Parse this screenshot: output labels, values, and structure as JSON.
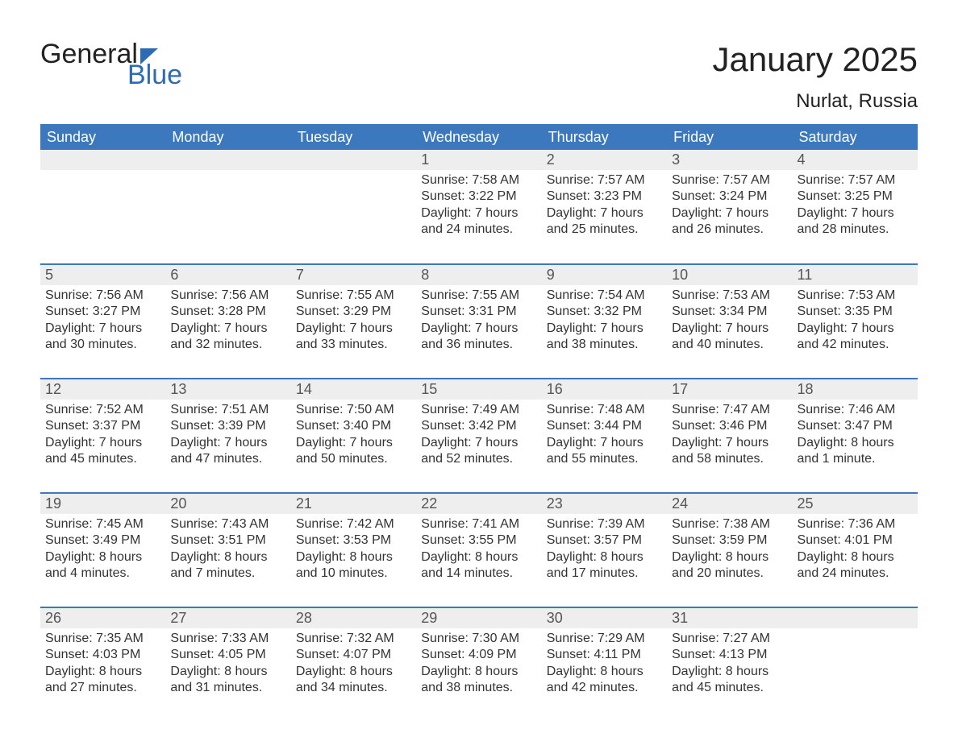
{
  "logo": {
    "word1": "General",
    "word2": "Blue"
  },
  "title": "January 2025",
  "location": "Nurlat, Russia",
  "colors": {
    "header_bg": "#3b78bd",
    "header_text": "#ffffff",
    "row_separator": "#3b78bd",
    "daynum_bg": "#eeeeee",
    "daynum_text": "#555555",
    "body_text": "#333333",
    "page_bg": "#ffffff",
    "logo_accent": "#2d6cb4"
  },
  "fonts": {
    "title_size_pt": 32,
    "location_size_pt": 18,
    "dayheader_size_pt": 14,
    "daynum_size_pt": 14,
    "body_size_pt": 12
  },
  "day_headers": [
    "Sunday",
    "Monday",
    "Tuesday",
    "Wednesday",
    "Thursday",
    "Friday",
    "Saturday"
  ],
  "weeks": [
    [
      {
        "n": "",
        "sr": "",
        "ss": "",
        "dl": ""
      },
      {
        "n": "",
        "sr": "",
        "ss": "",
        "dl": ""
      },
      {
        "n": "",
        "sr": "",
        "ss": "",
        "dl": ""
      },
      {
        "n": "1",
        "sr": "Sunrise: 7:58 AM",
        "ss": "Sunset: 3:22 PM",
        "dl": "Daylight: 7 hours and 24 minutes."
      },
      {
        "n": "2",
        "sr": "Sunrise: 7:57 AM",
        "ss": "Sunset: 3:23 PM",
        "dl": "Daylight: 7 hours and 25 minutes."
      },
      {
        "n": "3",
        "sr": "Sunrise: 7:57 AM",
        "ss": "Sunset: 3:24 PM",
        "dl": "Daylight: 7 hours and 26 minutes."
      },
      {
        "n": "4",
        "sr": "Sunrise: 7:57 AM",
        "ss": "Sunset: 3:25 PM",
        "dl": "Daylight: 7 hours and 28 minutes."
      }
    ],
    [
      {
        "n": "5",
        "sr": "Sunrise: 7:56 AM",
        "ss": "Sunset: 3:27 PM",
        "dl": "Daylight: 7 hours and 30 minutes."
      },
      {
        "n": "6",
        "sr": "Sunrise: 7:56 AM",
        "ss": "Sunset: 3:28 PM",
        "dl": "Daylight: 7 hours and 32 minutes."
      },
      {
        "n": "7",
        "sr": "Sunrise: 7:55 AM",
        "ss": "Sunset: 3:29 PM",
        "dl": "Daylight: 7 hours and 33 minutes."
      },
      {
        "n": "8",
        "sr": "Sunrise: 7:55 AM",
        "ss": "Sunset: 3:31 PM",
        "dl": "Daylight: 7 hours and 36 minutes."
      },
      {
        "n": "9",
        "sr": "Sunrise: 7:54 AM",
        "ss": "Sunset: 3:32 PM",
        "dl": "Daylight: 7 hours and 38 minutes."
      },
      {
        "n": "10",
        "sr": "Sunrise: 7:53 AM",
        "ss": "Sunset: 3:34 PM",
        "dl": "Daylight: 7 hours and 40 minutes."
      },
      {
        "n": "11",
        "sr": "Sunrise: 7:53 AM",
        "ss": "Sunset: 3:35 PM",
        "dl": "Daylight: 7 hours and 42 minutes."
      }
    ],
    [
      {
        "n": "12",
        "sr": "Sunrise: 7:52 AM",
        "ss": "Sunset: 3:37 PM",
        "dl": "Daylight: 7 hours and 45 minutes."
      },
      {
        "n": "13",
        "sr": "Sunrise: 7:51 AM",
        "ss": "Sunset: 3:39 PM",
        "dl": "Daylight: 7 hours and 47 minutes."
      },
      {
        "n": "14",
        "sr": "Sunrise: 7:50 AM",
        "ss": "Sunset: 3:40 PM",
        "dl": "Daylight: 7 hours and 50 minutes."
      },
      {
        "n": "15",
        "sr": "Sunrise: 7:49 AM",
        "ss": "Sunset: 3:42 PM",
        "dl": "Daylight: 7 hours and 52 minutes."
      },
      {
        "n": "16",
        "sr": "Sunrise: 7:48 AM",
        "ss": "Sunset: 3:44 PM",
        "dl": "Daylight: 7 hours and 55 minutes."
      },
      {
        "n": "17",
        "sr": "Sunrise: 7:47 AM",
        "ss": "Sunset: 3:46 PM",
        "dl": "Daylight: 7 hours and 58 minutes."
      },
      {
        "n": "18",
        "sr": "Sunrise: 7:46 AM",
        "ss": "Sunset: 3:47 PM",
        "dl": "Daylight: 8 hours and 1 minute."
      }
    ],
    [
      {
        "n": "19",
        "sr": "Sunrise: 7:45 AM",
        "ss": "Sunset: 3:49 PM",
        "dl": "Daylight: 8 hours and 4 minutes."
      },
      {
        "n": "20",
        "sr": "Sunrise: 7:43 AM",
        "ss": "Sunset: 3:51 PM",
        "dl": "Daylight: 8 hours and 7 minutes."
      },
      {
        "n": "21",
        "sr": "Sunrise: 7:42 AM",
        "ss": "Sunset: 3:53 PM",
        "dl": "Daylight: 8 hours and 10 minutes."
      },
      {
        "n": "22",
        "sr": "Sunrise: 7:41 AM",
        "ss": "Sunset: 3:55 PM",
        "dl": "Daylight: 8 hours and 14 minutes."
      },
      {
        "n": "23",
        "sr": "Sunrise: 7:39 AM",
        "ss": "Sunset: 3:57 PM",
        "dl": "Daylight: 8 hours and 17 minutes."
      },
      {
        "n": "24",
        "sr": "Sunrise: 7:38 AM",
        "ss": "Sunset: 3:59 PM",
        "dl": "Daylight: 8 hours and 20 minutes."
      },
      {
        "n": "25",
        "sr": "Sunrise: 7:36 AM",
        "ss": "Sunset: 4:01 PM",
        "dl": "Daylight: 8 hours and 24 minutes."
      }
    ],
    [
      {
        "n": "26",
        "sr": "Sunrise: 7:35 AM",
        "ss": "Sunset: 4:03 PM",
        "dl": "Daylight: 8 hours and 27 minutes."
      },
      {
        "n": "27",
        "sr": "Sunrise: 7:33 AM",
        "ss": "Sunset: 4:05 PM",
        "dl": "Daylight: 8 hours and 31 minutes."
      },
      {
        "n": "28",
        "sr": "Sunrise: 7:32 AM",
        "ss": "Sunset: 4:07 PM",
        "dl": "Daylight: 8 hours and 34 minutes."
      },
      {
        "n": "29",
        "sr": "Sunrise: 7:30 AM",
        "ss": "Sunset: 4:09 PM",
        "dl": "Daylight: 8 hours and 38 minutes."
      },
      {
        "n": "30",
        "sr": "Sunrise: 7:29 AM",
        "ss": "Sunset: 4:11 PM",
        "dl": "Daylight: 8 hours and 42 minutes."
      },
      {
        "n": "31",
        "sr": "Sunrise: 7:27 AM",
        "ss": "Sunset: 4:13 PM",
        "dl": "Daylight: 8 hours and 45 minutes."
      },
      {
        "n": "",
        "sr": "",
        "ss": "",
        "dl": ""
      }
    ]
  ]
}
